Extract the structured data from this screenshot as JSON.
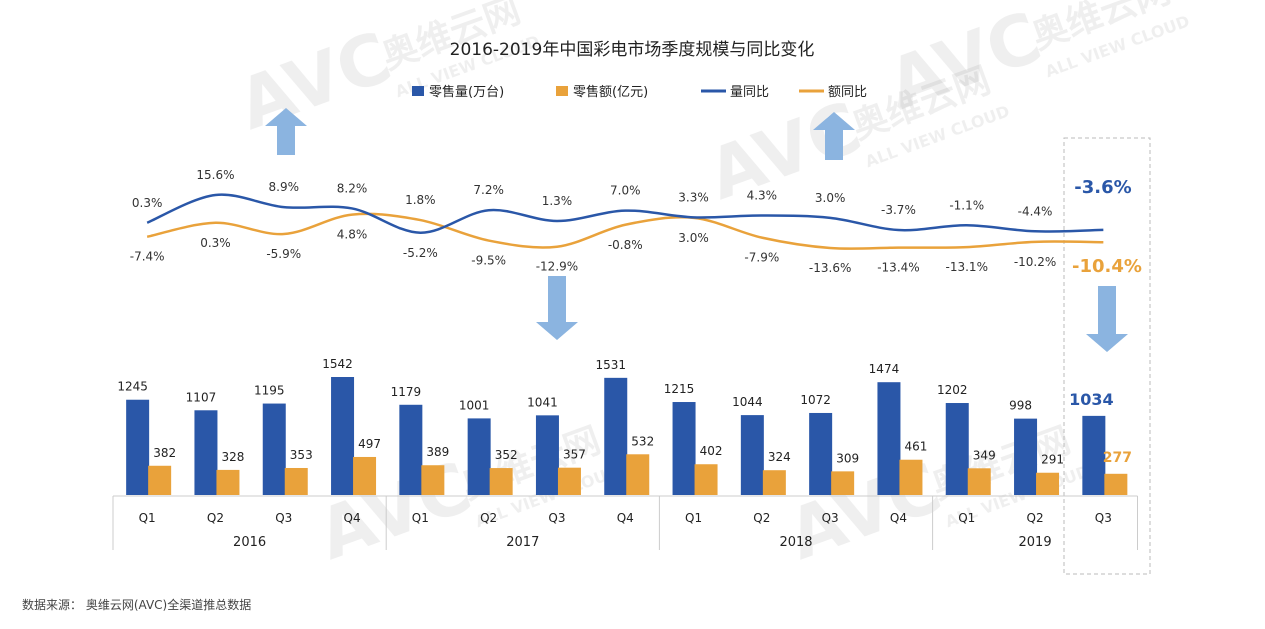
{
  "colors": {
    "volume_bar": "#2a57a8",
    "amount_bar": "#e9a23b",
    "volume_line": "#2a57a8",
    "amount_line": "#e9a23b",
    "arrow": "#8bb4e0",
    "axis": "#cccccc"
  },
  "watermark": {
    "brand": "AVC",
    "cn": "奥维云网",
    "en": "ALL VIEW CLOUD"
  },
  "source_text": "数据来源： 奥维云网(AVC)全渠道推总数据",
  "chart_data": {
    "type": "bar",
    "title": "2016-2019年中国彩电市场季度规模与同比变化",
    "legend": [
      "零售量(万台)",
      "零售额(亿元)",
      "量同比",
      "额同比"
    ],
    "legend_position": "top",
    "categories": [
      "Q1",
      "Q2",
      "Q3",
      "Q4",
      "Q1",
      "Q2",
      "Q3",
      "Q4",
      "Q1",
      "Q2",
      "Q3",
      "Q4",
      "Q1",
      "Q2",
      "Q3"
    ],
    "years": [
      {
        "label": "2016",
        "count": 4
      },
      {
        "label": "2017",
        "count": 4
      },
      {
        "label": "2018",
        "count": 4
      },
      {
        "label": "2019",
        "count": 3
      }
    ],
    "series": [
      {
        "name": "零售量(万台)",
        "kind": "bar",
        "values": [
          1245,
          1107,
          1195,
          1542,
          1179,
          1001,
          1041,
          1531,
          1215,
          1044,
          1072,
          1474,
          1202,
          998,
          1034
        ]
      },
      {
        "name": "零售额(亿元)",
        "kind": "bar",
        "values": [
          382,
          328,
          353,
          497,
          389,
          352,
          357,
          532,
          402,
          324,
          309,
          461,
          349,
          291,
          277
        ]
      },
      {
        "name": "量同比",
        "kind": "line",
        "values": [
          0.3,
          15.6,
          8.9,
          8.2,
          -5.2,
          7.2,
          1.3,
          7.0,
          3.3,
          4.3,
          3.0,
          -3.7,
          -1.1,
          -4.4,
          -3.6
        ],
        "labels": [
          "0.3%",
          "15.6%",
          "8.9%",
          "8.2%",
          "-5.2%",
          "7.2%",
          "1.3%",
          "7.0%",
          "3.3%",
          "4.3%",
          "3.0%",
          "-3.7%",
          "-1.1%",
          "-4.4%",
          "-3.6%"
        ]
      },
      {
        "name": "额同比",
        "kind": "line",
        "values": [
          -7.4,
          0.3,
          -5.9,
          4.8,
          1.8,
          -9.5,
          -12.9,
          -0.8,
          3.0,
          -7.9,
          -13.6,
          -13.4,
          -13.1,
          -10.2,
          -10.4
        ],
        "labels": [
          "-7.4%",
          "0.3%",
          "-5.9%",
          "4.8%",
          "1.8%",
          "-9.5%",
          "-12.9%",
          "-0.8%",
          "3.0%",
          "-7.9%",
          "-13.6%",
          "-13.4%",
          "-13.1%",
          "-10.2%",
          "-10.4%"
        ]
      }
    ],
    "highlight": {
      "category_index": 14,
      "volume_yoy": "-3.6%",
      "amount_yoy": "-10.4%",
      "volume_value": "1034",
      "amount_value": "277"
    },
    "grid": false
  }
}
